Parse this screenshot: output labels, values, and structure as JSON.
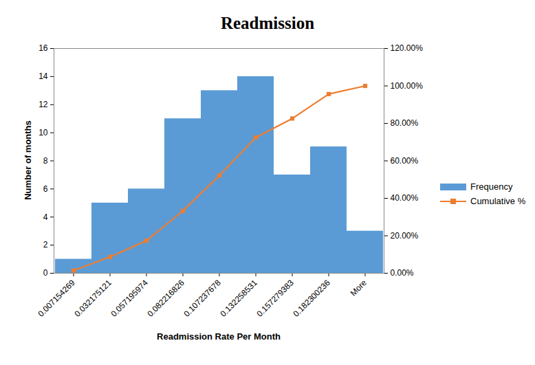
{
  "chart_data": {
    "type": "bar",
    "title": "Readmission",
    "x_label": "Readmission Rate Per Month",
    "y_label": "Number of months",
    "categories": [
      "0.007154269",
      "0.032175121",
      "0.057195974",
      "0.082216826",
      "0.107237678",
      "0.132258531",
      "0.157279383",
      "0.182300236",
      "More"
    ],
    "series": [
      {
        "name": "Frequency",
        "type": "bar",
        "color": "#5b9bd5",
        "values": [
          1,
          5,
          6,
          11,
          13,
          14,
          7,
          9,
          3
        ]
      },
      {
        "name": "Cumulative %",
        "type": "line",
        "axis": "y2",
        "color": "#ed7d31",
        "marker": "square",
        "values": [
          1.45,
          8.7,
          17.39,
          33.33,
          52.17,
          72.46,
          82.61,
          95.65,
          100
        ]
      }
    ],
    "ylim": [
      0,
      16
    ],
    "yticks": [
      0,
      2,
      4,
      6,
      8,
      10,
      12,
      14,
      16
    ],
    "y2lim": [
      0,
      120
    ],
    "y2ticks": [
      {
        "value": 0,
        "label": "0.00%"
      },
      {
        "value": 20,
        "label": "20.00%"
      },
      {
        "value": 40,
        "label": "40.00%"
      },
      {
        "value": 60,
        "label": "60.00%"
      },
      {
        "value": 80,
        "label": "80.00%"
      },
      {
        "value": 100,
        "label": "100.00%"
      },
      {
        "value": 120,
        "label": "120.00%"
      }
    ],
    "legend": "right",
    "grid": false
  }
}
